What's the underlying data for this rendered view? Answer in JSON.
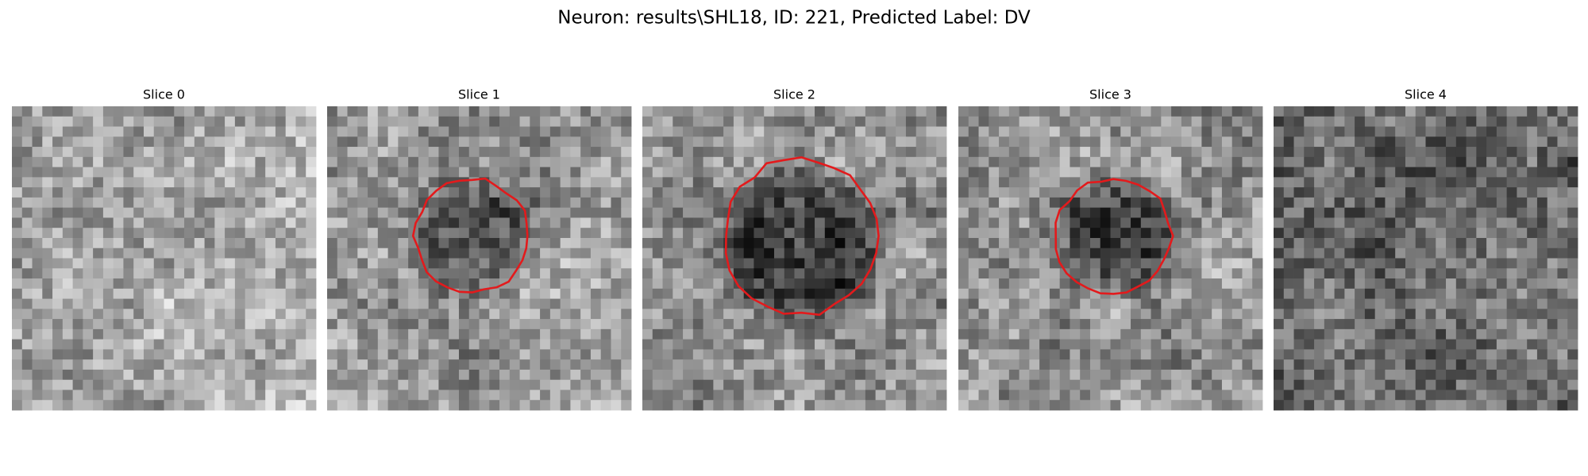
{
  "figure": {
    "title": "Neuron: results\\SHL18, ID: 221, Predicted Label: DV",
    "panels": [
      {
        "title": "Slice 0"
      },
      {
        "title": "Slice 1"
      },
      {
        "title": "Slice 2"
      },
      {
        "title": "Slice 3"
      },
      {
        "title": "Slice 4"
      }
    ]
  }
}
